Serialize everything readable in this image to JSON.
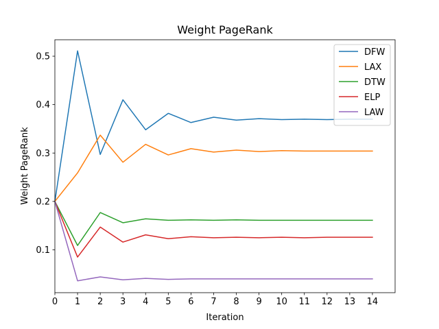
{
  "chart_data": {
    "type": "line",
    "title": "Weight PageRank",
    "xlabel": "Iteration",
    "ylabel": "Weight PageRank",
    "x": [
      0,
      1,
      2,
      3,
      4,
      5,
      6,
      7,
      8,
      9,
      10,
      11,
      12,
      13,
      14
    ],
    "xlim": [
      0,
      15
    ],
    "ylim": [
      0.0115,
      0.534
    ],
    "xticks": [
      "0",
      "1",
      "2",
      "3",
      "4",
      "5",
      "6",
      "7",
      "8",
      "9",
      "10",
      "11",
      "12",
      "13",
      "14"
    ],
    "yticks": [
      0.1,
      0.2,
      0.3,
      0.4,
      0.5
    ],
    "ytick_labels": [
      "0.1",
      "0.2",
      "0.3",
      "0.4",
      "0.5"
    ],
    "grid": false,
    "legend_position": "top-right",
    "series": [
      {
        "name": "DFW",
        "color": "#1f77b4",
        "values": [
          0.2,
          0.511,
          0.297,
          0.41,
          0.348,
          0.382,
          0.363,
          0.374,
          0.368,
          0.371,
          0.369,
          0.37,
          0.369,
          0.37,
          0.37
        ]
      },
      {
        "name": "LAX",
        "color": "#ff7f0e",
        "values": [
          0.2,
          0.259,
          0.337,
          0.281,
          0.318,
          0.296,
          0.309,
          0.302,
          0.306,
          0.303,
          0.305,
          0.304,
          0.304,
          0.304,
          0.304
        ]
      },
      {
        "name": "DTW",
        "color": "#2ca02c",
        "values": [
          0.2,
          0.109,
          0.177,
          0.156,
          0.164,
          0.161,
          0.162,
          0.161,
          0.162,
          0.161,
          0.161,
          0.161,
          0.161,
          0.161,
          0.161
        ]
      },
      {
        "name": "ELP",
        "color": "#d62728",
        "values": [
          0.2,
          0.085,
          0.147,
          0.116,
          0.131,
          0.123,
          0.127,
          0.125,
          0.126,
          0.125,
          0.126,
          0.125,
          0.126,
          0.126,
          0.126
        ]
      },
      {
        "name": "LAW",
        "color": "#9467bd",
        "values": [
          0.2,
          0.036,
          0.044,
          0.038,
          0.041,
          0.039,
          0.04,
          0.04,
          0.04,
          0.04,
          0.04,
          0.04,
          0.04,
          0.04,
          0.04
        ]
      }
    ]
  }
}
